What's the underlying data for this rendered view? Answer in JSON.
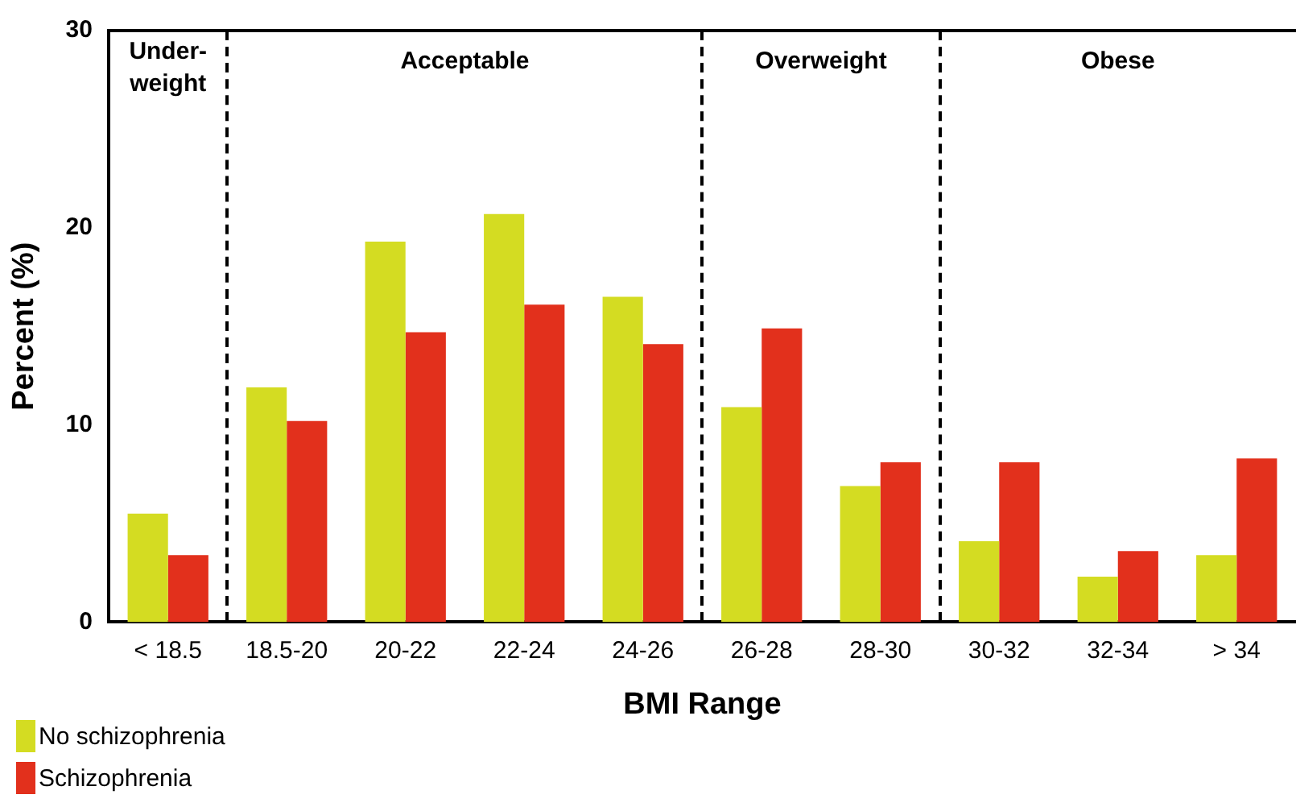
{
  "chart_data": {
    "type": "bar",
    "xlabel": "BMI Range",
    "ylabel": "Percent (%)",
    "categories": [
      "< 18.5",
      "18.5-20",
      "20-22",
      "22-24",
      "24-26",
      "26-28",
      "28-30",
      "30-32",
      "32-34",
      "> 34"
    ],
    "series": [
      {
        "name": "No schizophrenia",
        "color": "#d4dc22",
        "values": [
          5.5,
          11.9,
          19.3,
          20.7,
          16.5,
          10.9,
          6.9,
          4.1,
          2.3,
          3.4
        ]
      },
      {
        "name": "Schizophrenia",
        "color": "#e2301c",
        "values": [
          3.4,
          10.2,
          14.7,
          16.1,
          14.1,
          14.9,
          8.1,
          8.1,
          3.6,
          8.3
        ]
      }
    ],
    "ylim": [
      0,
      30
    ],
    "yticks": [
      0,
      10,
      20,
      30
    ],
    "grid": false,
    "legend": "bottom left",
    "annotations": [
      "Under-weight",
      "Acceptable",
      "Overweight",
      "Obese"
    ]
  }
}
